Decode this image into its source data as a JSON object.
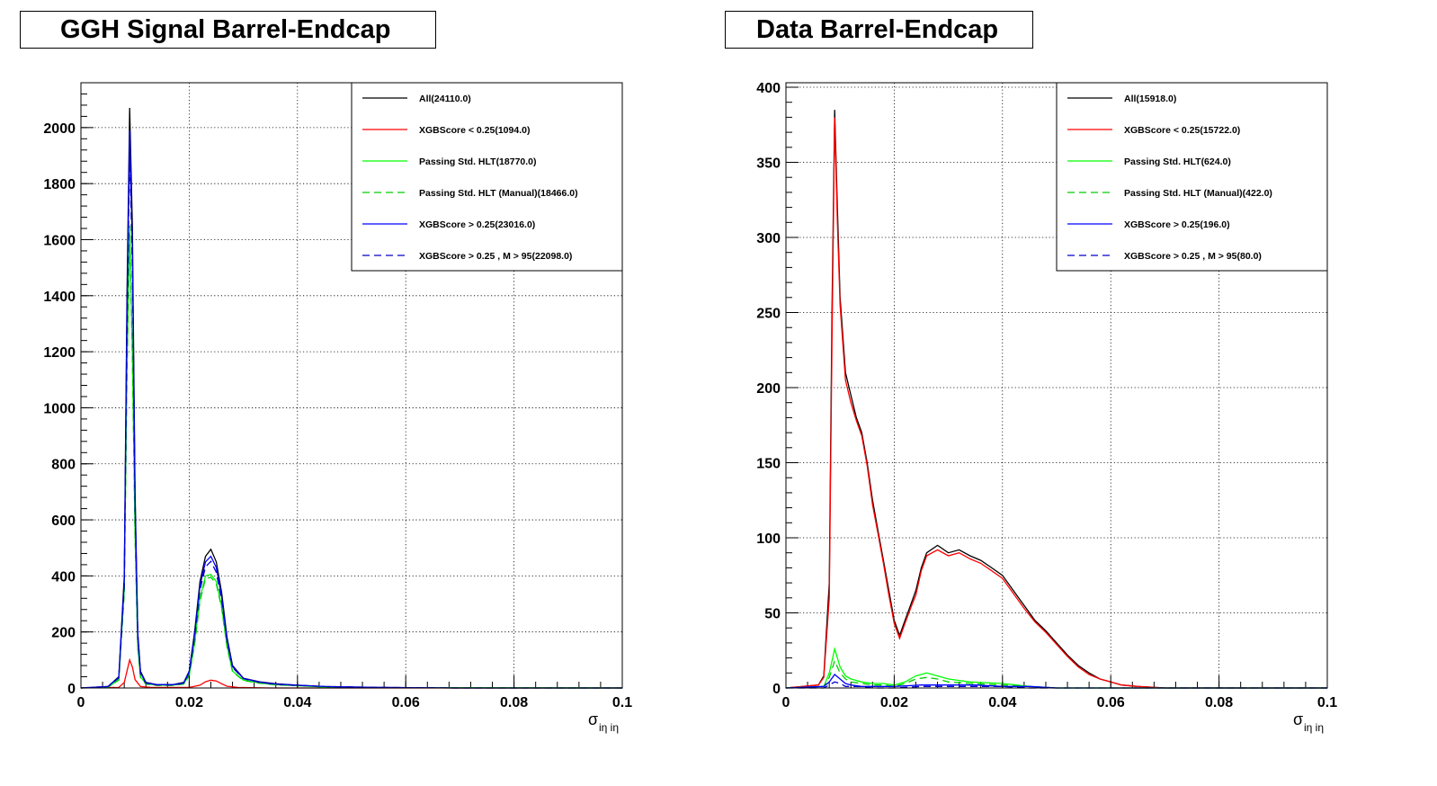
{
  "chart_data": [
    {
      "type": "line",
      "title": "GGH Signal Barrel-Endcap",
      "xlabel_main": "σ",
      "xlabel_sub": "iη iη",
      "xlim": [
        0,
        0.1
      ],
      "ylim": [
        0,
        2160
      ],
      "x_ticks": [
        0,
        0.02,
        0.04,
        0.06,
        0.08,
        0.1
      ],
      "x_tick_labels": [
        "0",
        "0.02",
        "0.04",
        "0.06",
        "0.08",
        "0.1"
      ],
      "y_ticks": [
        0,
        200,
        400,
        600,
        800,
        1000,
        1200,
        1400,
        1600,
        1800,
        2000
      ],
      "y_tick_labels": [
        "0",
        "200",
        "400",
        "600",
        "800",
        "1000",
        "1200",
        "1400",
        "1600",
        "1800",
        "2000"
      ],
      "grid": true,
      "legend_position": "top-right",
      "series": [
        {
          "name": "All(24110.0)",
          "color": "#000000",
          "dash": "solid",
          "x": [
            0.0,
            0.005,
            0.007,
            0.008,
            0.0085,
            0.009,
            0.0095,
            0.01,
            0.0105,
            0.011,
            0.012,
            0.014,
            0.017,
            0.019,
            0.02,
            0.021,
            0.022,
            0.023,
            0.024,
            0.025,
            0.026,
            0.027,
            0.028,
            0.03,
            0.033,
            0.036,
            0.04,
            0.045,
            0.055,
            0.07,
            0.1
          ],
          "y": [
            0,
            5,
            40,
            400,
            1400,
            2070,
            1650,
            700,
            200,
            60,
            20,
            12,
            12,
            20,
            60,
            200,
            380,
            470,
            495,
            450,
            340,
            180,
            80,
            35,
            22,
            15,
            10,
            5,
            2,
            0,
            0
          ]
        },
        {
          "name": "XGBScore < 0.25(1094.0)",
          "color": "#ff0000",
          "dash": "solid",
          "x": [
            0.0,
            0.007,
            0.008,
            0.0085,
            0.009,
            0.0095,
            0.01,
            0.011,
            0.013,
            0.02,
            0.022,
            0.023,
            0.024,
            0.025,
            0.026,
            0.027,
            0.029,
            0.035,
            0.1
          ],
          "y": [
            0,
            2,
            20,
            60,
            100,
            75,
            30,
            5,
            2,
            2,
            10,
            22,
            28,
            25,
            15,
            6,
            2,
            0,
            0
          ]
        },
        {
          "name": "Passing Std. HLT(18770.0)",
          "color": "#00ff00",
          "dash": "solid",
          "x": [
            0.0,
            0.005,
            0.007,
            0.008,
            0.0085,
            0.009,
            0.0095,
            0.01,
            0.0105,
            0.011,
            0.012,
            0.014,
            0.017,
            0.019,
            0.02,
            0.021,
            0.022,
            0.023,
            0.024,
            0.025,
            0.026,
            0.027,
            0.028,
            0.03,
            0.033,
            0.036,
            0.04,
            0.045,
            0.055,
            0.1
          ],
          "y": [
            0,
            3,
            30,
            350,
            1150,
            1650,
            1200,
            550,
            150,
            40,
            15,
            10,
            10,
            15,
            45,
            160,
            320,
            400,
            405,
            380,
            290,
            150,
            60,
            28,
            18,
            12,
            8,
            4,
            1,
            0
          ]
        },
        {
          "name": "Passing Std. HLT (Manual)(18466.0)",
          "color": "#00cc00",
          "dash": "dashed",
          "x": [
            0.0,
            0.005,
            0.007,
            0.008,
            0.0085,
            0.009,
            0.0095,
            0.01,
            0.0105,
            0.011,
            0.012,
            0.014,
            0.017,
            0.019,
            0.02,
            0.021,
            0.022,
            0.023,
            0.024,
            0.025,
            0.026,
            0.027,
            0.028,
            0.03,
            0.033,
            0.036,
            0.04,
            0.045,
            0.055,
            0.1
          ],
          "y": [
            0,
            3,
            28,
            340,
            1120,
            1620,
            1180,
            540,
            145,
            38,
            14,
            9,
            9,
            14,
            43,
            155,
            310,
            390,
            395,
            372,
            285,
            145,
            58,
            27,
            17,
            11,
            8,
            4,
            1,
            0
          ]
        },
        {
          "name": "XGBScore > 0.25(23016.0)",
          "color": "#0000ff",
          "dash": "solid",
          "x": [
            0.0,
            0.005,
            0.007,
            0.008,
            0.0085,
            0.009,
            0.0095,
            0.01,
            0.0105,
            0.011,
            0.012,
            0.014,
            0.017,
            0.019,
            0.02,
            0.021,
            0.022,
            0.023,
            0.024,
            0.025,
            0.026,
            0.027,
            0.028,
            0.03,
            0.033,
            0.036,
            0.04,
            0.045,
            0.055,
            0.07,
            0.1
          ],
          "y": [
            0,
            5,
            38,
            380,
            1330,
            1990,
            1560,
            670,
            190,
            55,
            18,
            12,
            12,
            18,
            58,
            190,
            365,
            450,
            470,
            430,
            325,
            172,
            76,
            34,
            21,
            14,
            10,
            5,
            2,
            0,
            0
          ]
        },
        {
          "name": "XGBScore > 0.25 , M > 95(22098.0)",
          "color": "#0000cc",
          "dash": "dashed",
          "x": [
            0.0,
            0.005,
            0.007,
            0.008,
            0.0085,
            0.009,
            0.0095,
            0.01,
            0.0105,
            0.011,
            0.012,
            0.014,
            0.017,
            0.019,
            0.02,
            0.021,
            0.022,
            0.023,
            0.024,
            0.025,
            0.026,
            0.027,
            0.028,
            0.03,
            0.033,
            0.036,
            0.04,
            0.045,
            0.055,
            0.07,
            0.1
          ],
          "y": [
            0,
            5,
            36,
            365,
            1280,
            1920,
            1500,
            645,
            182,
            52,
            17,
            11,
            11,
            17,
            55,
            182,
            350,
            432,
            452,
            413,
            312,
            165,
            73,
            33,
            20,
            13,
            9,
            5,
            2,
            0,
            0
          ]
        }
      ]
    },
    {
      "type": "line",
      "title": "Data Barrel-Endcap",
      "xlabel_main": "σ",
      "xlabel_sub": "iη iη",
      "xlim": [
        0,
        0.1
      ],
      "ylim": [
        0,
        403
      ],
      "x_ticks": [
        0,
        0.02,
        0.04,
        0.06,
        0.08,
        0.1
      ],
      "x_tick_labels": [
        "0",
        "0.02",
        "0.04",
        "0.06",
        "0.08",
        "0.1"
      ],
      "y_ticks": [
        0,
        50,
        100,
        150,
        200,
        250,
        300,
        350,
        400
      ],
      "y_tick_labels": [
        "0",
        "50",
        "100",
        "150",
        "200",
        "250",
        "300",
        "350",
        "400"
      ],
      "grid": true,
      "legend_position": "top-right",
      "series": [
        {
          "name": "All(15918.0)",
          "color": "#000000",
          "dash": "solid",
          "x": [
            0.0,
            0.006,
            0.007,
            0.008,
            0.0085,
            0.009,
            0.0095,
            0.01,
            0.011,
            0.012,
            0.013,
            0.014,
            0.015,
            0.016,
            0.017,
            0.018,
            0.019,
            0.02,
            0.021,
            0.022,
            0.023,
            0.024,
            0.025,
            0.026,
            0.028,
            0.03,
            0.032,
            0.034,
            0.036,
            0.038,
            0.04,
            0.042,
            0.044,
            0.046,
            0.048,
            0.05,
            0.052,
            0.054,
            0.056,
            0.058,
            0.06,
            0.062,
            0.065,
            0.07,
            0.1
          ],
          "y": [
            0,
            2,
            8,
            70,
            250,
            385,
            320,
            260,
            210,
            195,
            180,
            170,
            150,
            125,
            105,
            85,
            65,
            45,
            35,
            45,
            55,
            65,
            80,
            90,
            95,
            90,
            92,
            88,
            85,
            80,
            75,
            65,
            55,
            45,
            38,
            30,
            22,
            15,
            10,
            6,
            4,
            2,
            1,
            0,
            0
          ]
        },
        {
          "name": "XGBScore < 0.25(15722.0)",
          "color": "#ff0000",
          "dash": "solid",
          "x": [
            0.0,
            0.006,
            0.007,
            0.008,
            0.0085,
            0.009,
            0.0095,
            0.01,
            0.011,
            0.012,
            0.013,
            0.014,
            0.015,
            0.016,
            0.017,
            0.018,
            0.019,
            0.02,
            0.021,
            0.022,
            0.023,
            0.024,
            0.025,
            0.026,
            0.028,
            0.03,
            0.032,
            0.034,
            0.036,
            0.038,
            0.04,
            0.042,
            0.044,
            0.046,
            0.048,
            0.05,
            0.052,
            0.054,
            0.056,
            0.058,
            0.06,
            0.062,
            0.065,
            0.07,
            0.1
          ],
          "y": [
            0,
            2,
            7,
            60,
            230,
            380,
            310,
            255,
            205,
            190,
            178,
            168,
            148,
            122,
            103,
            83,
            62,
            43,
            33,
            43,
            53,
            62,
            78,
            88,
            92,
            88,
            90,
            86,
            83,
            78,
            73,
            63,
            53,
            44,
            37,
            29,
            21,
            14,
            9,
            6,
            4,
            2,
            1,
            0,
            0
          ]
        },
        {
          "name": "Passing Std. HLT(624.0)",
          "color": "#00ff00",
          "dash": "solid",
          "x": [
            0.0,
            0.007,
            0.008,
            0.009,
            0.01,
            0.011,
            0.012,
            0.014,
            0.016,
            0.018,
            0.02,
            0.022,
            0.024,
            0.026,
            0.028,
            0.03,
            0.034,
            0.04,
            0.045,
            0.05,
            0.1
          ],
          "y": [
            0,
            1,
            10,
            26,
            14,
            8,
            6,
            4,
            3,
            3,
            2,
            4,
            8,
            10,
            8,
            6,
            4,
            3,
            1,
            0,
            0
          ]
        },
        {
          "name": "Passing Std. HLT (Manual)(422.0)",
          "color": "#00cc00",
          "dash": "dashed",
          "x": [
            0.0,
            0.007,
            0.008,
            0.009,
            0.01,
            0.011,
            0.012,
            0.014,
            0.016,
            0.018,
            0.02,
            0.022,
            0.024,
            0.026,
            0.028,
            0.03,
            0.034,
            0.04,
            0.045,
            0.05,
            0.1
          ],
          "y": [
            0,
            1,
            7,
            18,
            10,
            6,
            4,
            3,
            2,
            2,
            1,
            3,
            6,
            7,
            6,
            4,
            3,
            2,
            1,
            0,
            0
          ]
        },
        {
          "name": "XGBScore > 0.25(196.0)",
          "color": "#0000ff",
          "dash": "solid",
          "x": [
            0.0,
            0.007,
            0.008,
            0.009,
            0.01,
            0.011,
            0.012,
            0.014,
            0.016,
            0.02,
            0.025,
            0.03,
            0.035,
            0.04,
            0.045,
            0.05,
            0.1
          ],
          "y": [
            0,
            1,
            4,
            9,
            6,
            3,
            2,
            1,
            1,
            1,
            2,
            2,
            2,
            1,
            1,
            0,
            0
          ]
        },
        {
          "name": "XGBScore > 0.25 , M > 95(80.0)",
          "color": "#0000cc",
          "dash": "dashed",
          "x": [
            0.0,
            0.007,
            0.008,
            0.009,
            0.01,
            0.011,
            0.012,
            0.014,
            0.016,
            0.02,
            0.025,
            0.03,
            0.035,
            0.04,
            0.045,
            0.05,
            0.1
          ],
          "y": [
            0,
            0,
            2,
            4,
            3,
            1,
            1,
            1,
            0,
            0,
            1,
            1,
            1,
            1,
            0,
            0,
            0
          ]
        }
      ]
    }
  ]
}
